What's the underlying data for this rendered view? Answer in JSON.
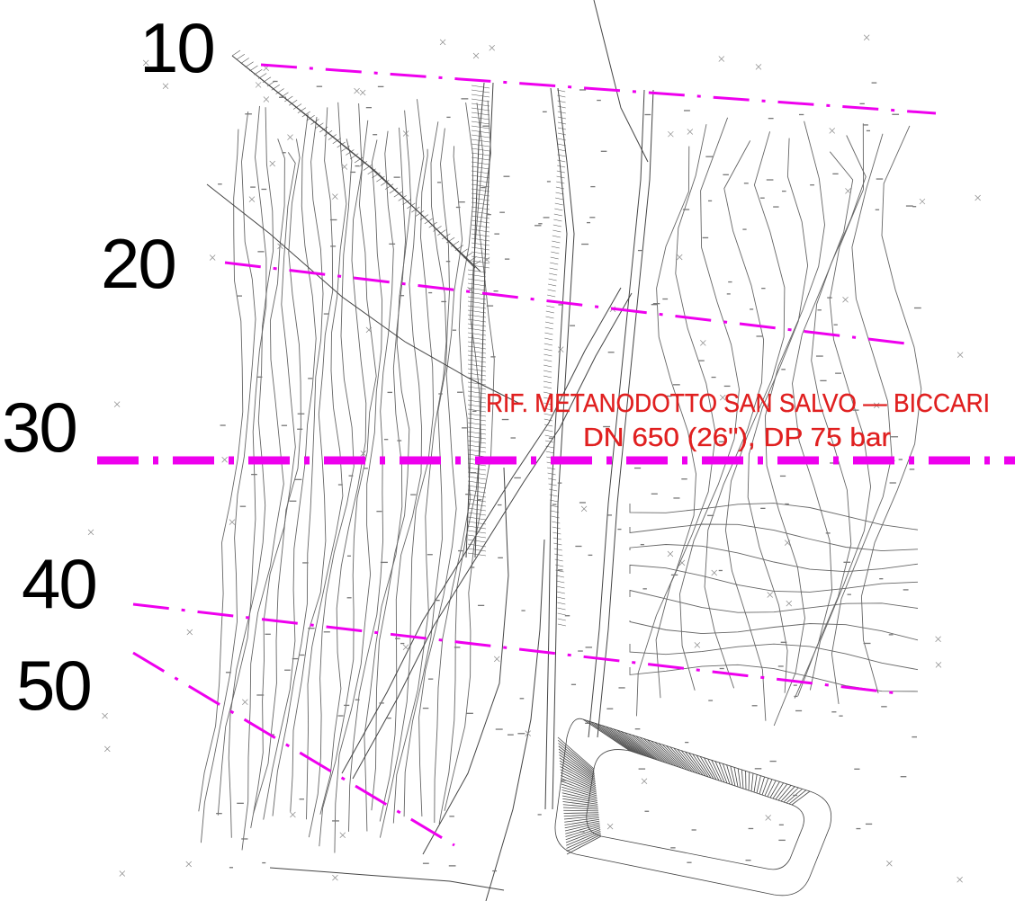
{
  "section_labels": [
    "10",
    "20",
    "30",
    "40",
    "50"
  ],
  "pipeline_annotation": {
    "line1": "RIF. METANODOTTO SAN SALVO — BICCARI",
    "line2": "DN 650 (26\"), DP 75 bar"
  },
  "colors": {
    "section_line": "#ee00ee",
    "pipeline_text": "#e02020",
    "contour": "#555555",
    "background": "#ffffff"
  }
}
